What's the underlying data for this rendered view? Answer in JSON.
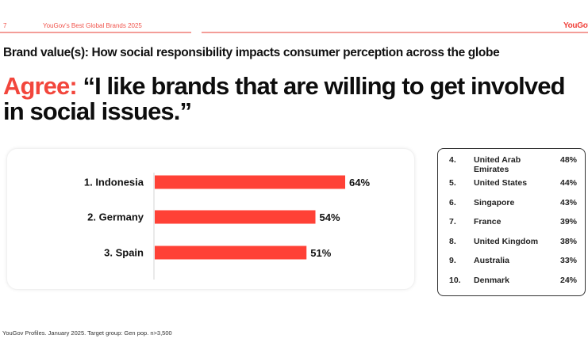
{
  "header": {
    "page_number": "7",
    "report_title": "YouGov's Best Global Brands 2025",
    "logo": "YouGov"
  },
  "subtitle": "Brand value(s): How social responsibility impacts consumer perception across the globe",
  "headline": {
    "prefix": "Agree:",
    "quote": "“I like brands that are willing to get involved in social issues.”"
  },
  "colors": {
    "accent": "#f2463c",
    "bar": "#ff4136",
    "header_line": "#f39d98"
  },
  "chart_data": {
    "type": "bar",
    "orientation": "horizontal",
    "title": "Agree: “I like brands that are willing to get involved in social issues.”",
    "xlabel": "",
    "ylabel": "",
    "xlim": [
      0,
      100
    ],
    "grid": false,
    "categories": [
      "1. Indonesia",
      "2. Germany",
      "3. Spain"
    ],
    "values": [
      64,
      54,
      51
    ],
    "data_labels": [
      "64%",
      "54%",
      "51%"
    ],
    "unit": "%"
  },
  "ranking_table": {
    "rows": [
      {
        "rank": "4.",
        "country": "United Arab Emirates",
        "value": "48%"
      },
      {
        "rank": "5.",
        "country": "United States",
        "value": "44%"
      },
      {
        "rank": "6.",
        "country": "Singapore",
        "value": "43%"
      },
      {
        "rank": "7.",
        "country": "France",
        "value": "39%"
      },
      {
        "rank": "8.",
        "country": "United Kingdom",
        "value": "38%"
      },
      {
        "rank": "9.",
        "country": "Australia",
        "value": "33%"
      },
      {
        "rank": "10.",
        "country": "Denmark",
        "value": "24%"
      }
    ]
  },
  "footnote": "YouGov Profiles. January 2025. Target group: Gen pop. n>3,500"
}
